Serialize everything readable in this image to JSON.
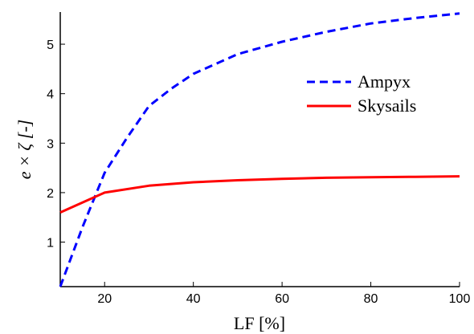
{
  "chart_data": {
    "type": "line",
    "xlabel": "LF [%]",
    "ylabel": "e × ζ [-]",
    "xlim": [
      10,
      100
    ],
    "ylim": [
      0.1,
      5.65
    ],
    "xticks": [
      20,
      40,
      60,
      80,
      100
    ],
    "yticks": [
      1,
      2,
      3,
      4,
      5
    ],
    "grid": false,
    "legend_position": "right",
    "series": [
      {
        "name": "Ampyx",
        "color": "#0000ff",
        "dash": "dashed",
        "x": [
          10,
          15,
          20,
          25,
          30,
          35,
          40,
          50,
          60,
          70,
          80,
          90,
          100
        ],
        "y": [
          0.1,
          1.3,
          2.4,
          3.1,
          3.75,
          4.1,
          4.4,
          4.8,
          5.05,
          5.25,
          5.42,
          5.53,
          5.62
        ]
      },
      {
        "name": "Skysails",
        "color": "#ff0000",
        "dash": "solid",
        "x": [
          10,
          20,
          30,
          40,
          50,
          60,
          70,
          80,
          90,
          100
        ],
        "y": [
          1.6,
          2.0,
          2.14,
          2.21,
          2.25,
          2.28,
          2.3,
          2.31,
          2.32,
          2.33
        ]
      }
    ]
  }
}
